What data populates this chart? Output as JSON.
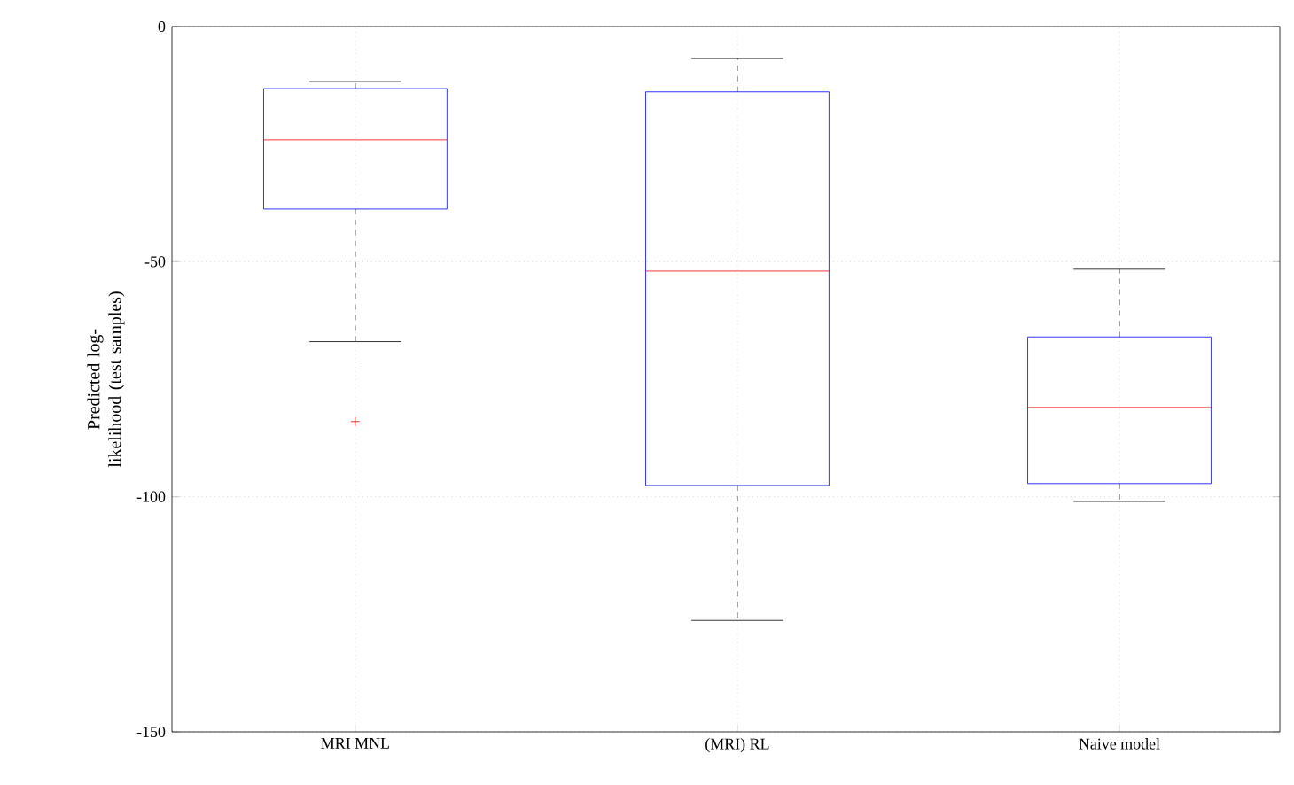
{
  "chart_data": {
    "type": "box",
    "ylabel": "Predicted log-likelihood (test samples)",
    "categories": [
      "MRI MNL",
      "(MRI) RL",
      "Naive model"
    ],
    "boxes": [
      {
        "low": -67,
        "q1": -38.8,
        "median": -24.1,
        "q3": -13.2,
        "high": -11.7,
        "outliers": [
          -84
        ]
      },
      {
        "low": -126.3,
        "q1": -97.6,
        "median": -52,
        "q3": -13.9,
        "high": -6.8
      },
      {
        "low": -101,
        "q1": -97.2,
        "median": -81,
        "q3": -66,
        "high": -51.6
      }
    ],
    "color": "#0000ff",
    "ylim": [
      -150,
      0
    ],
    "yticks": [
      -150,
      -100,
      -50,
      0
    ],
    "grid": true
  }
}
